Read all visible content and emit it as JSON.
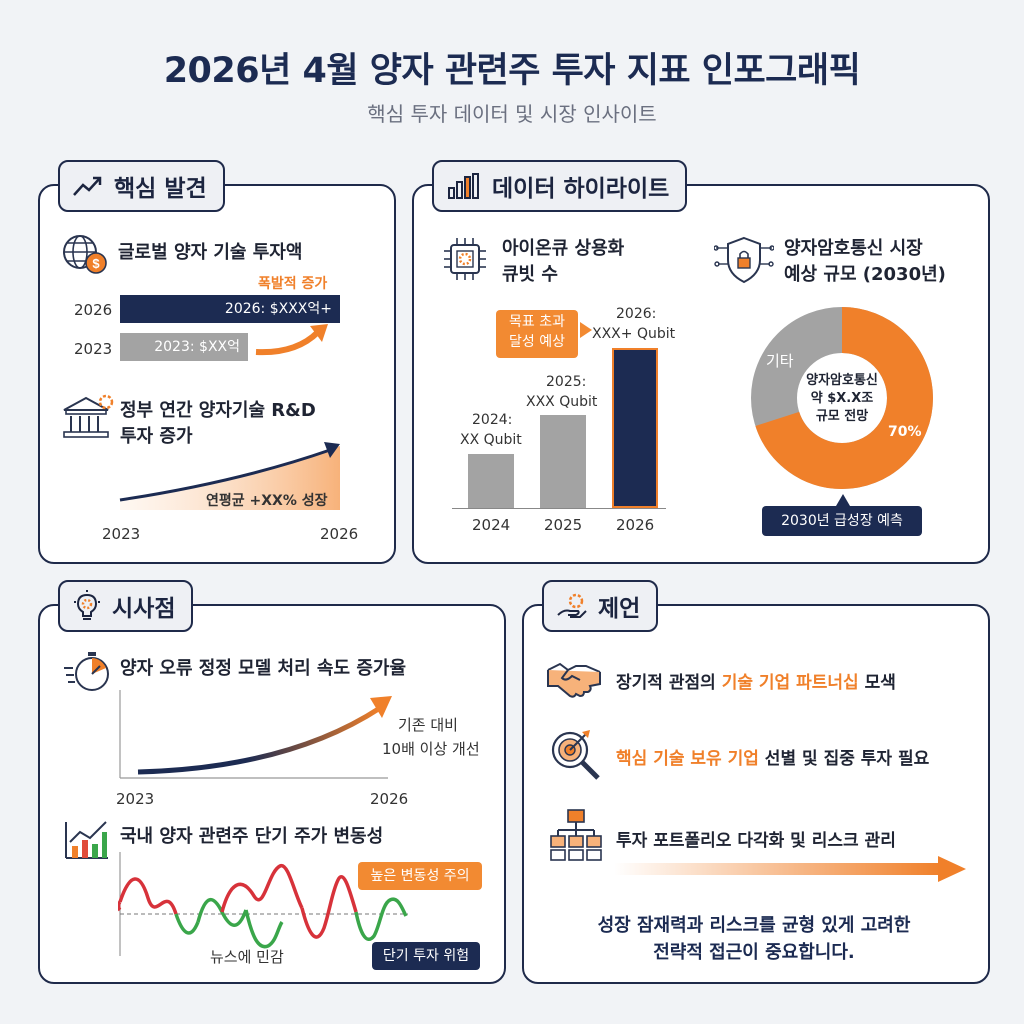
{
  "header": {
    "title": "2026년 4월 양자 관련주 투자 지표 인포그래픽",
    "subtitle": "핵심 투자 데이터 및 시장 인사이트"
  },
  "key_findings": {
    "tag": "핵심 발견",
    "investment": {
      "heading": "글로벌 양자 기술 투자액",
      "note": "폭발적 증가",
      "rows": [
        {
          "year": "2026",
          "label": "2026: $XXX억+"
        },
        {
          "year": "2023",
          "label": "2023: $XX억"
        }
      ]
    },
    "rnd": {
      "heading_line1": "정부 연간 양자기술 R&D",
      "heading_line2": "투자 증가",
      "growth": "연평균 +XX% 성장",
      "x_start": "2023",
      "x_end": "2026"
    }
  },
  "data_highlights": {
    "tag": "데이터 하이라이트",
    "ionq": {
      "heading_line1": "아이온큐 상용화",
      "heading_line2": "큐빗 수",
      "callout_line1": "목표 초과",
      "callout_line2": "달성 예상",
      "bars": [
        {
          "year": "2024",
          "label_line1": "2024:",
          "label_line2": "XX Qubit"
        },
        {
          "year": "2025",
          "label_line1": "2025:",
          "label_line2": "XXX Qubit"
        },
        {
          "year": "2026",
          "label_line1": "2026:",
          "label_line2": "XXX+ Qubit"
        }
      ]
    },
    "qkd": {
      "heading_line1": "양자암호통신 시장",
      "heading_line2": "예상 규모 (2030년)",
      "other_label": "기타",
      "center_line1": "양자암호통신",
      "center_line2": "약 $X.X조",
      "center_line3": "규모 전망",
      "main_pct_label": "70%",
      "main_share": 70,
      "callout": "2030년 급성장 예측"
    }
  },
  "implications": {
    "tag": "시사점",
    "error_correction": {
      "heading": "양자 오류 정정 모델 처리 속도 증가율",
      "note_line1": "기존 대비",
      "note_line2": "10배 이상 개선",
      "x_start": "2023",
      "x_end": "2026"
    },
    "volatility": {
      "heading": "국내 양자 관련주 단기 주가 변동성",
      "high_callout": "높은 변동성 주의",
      "news_note": "뉴스에 민감",
      "risk_callout": "단기 투자 위험"
    }
  },
  "recommendations": {
    "tag": "제언",
    "items": [
      {
        "pre": "장기적 관점의 ",
        "highlight": "기술 기업 파트너십",
        "post": " 모색"
      },
      {
        "pre": "",
        "highlight": "핵심 기술 보유 기업",
        "post": " 선별 및 집중 투자 필요"
      },
      {
        "pre": "투자 포트폴리오 다각화 및 리스크 관리",
        "highlight": "",
        "post": ""
      }
    ],
    "conclusion_line1": "성장 잠재력과 리스크를 균형 있게 고려한",
    "conclusion_line2": "전략적 접근이 중요합니다."
  },
  "colors": {
    "navy": "#1c2b52",
    "orange": "#f0802a",
    "gray": "#a3a3a3"
  }
}
